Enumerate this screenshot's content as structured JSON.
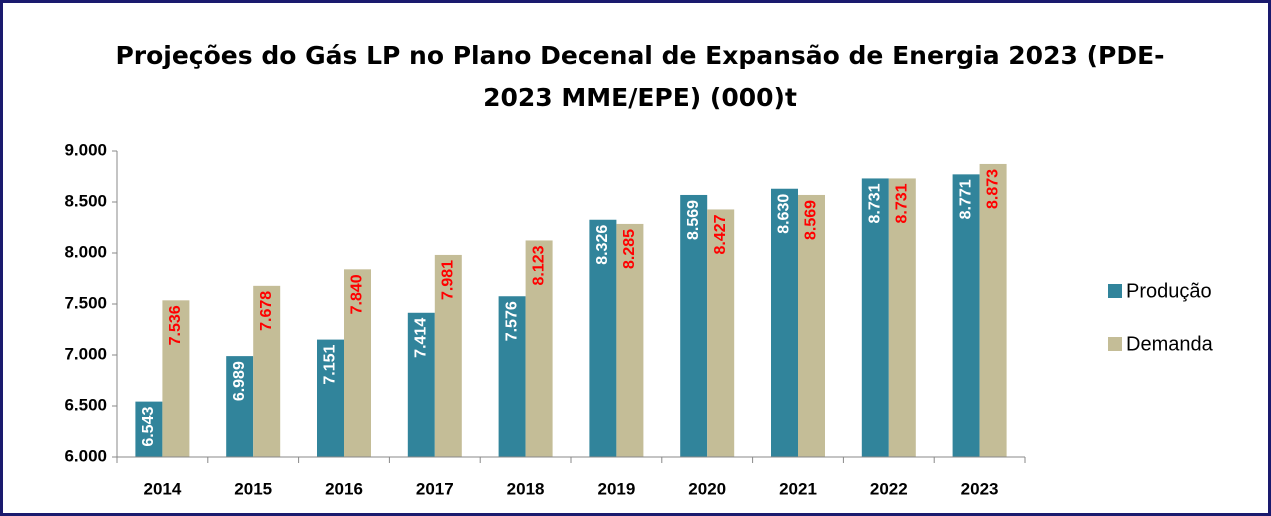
{
  "chart_data": {
    "type": "bar",
    "title": [
      "Projeções do Gás LP no Plano Decenal de Expansão de Energia 2023 (PDE-",
      "2023 MME/EPE) (000)t"
    ],
    "categories": [
      "2014",
      "2015",
      "2016",
      "2017",
      "2018",
      "2019",
      "2020",
      "2021",
      "2022",
      "2023"
    ],
    "series": [
      {
        "name": "Produção",
        "color": "#31849b",
        "label_color": "#ffffff",
        "values": [
          6543,
          6989,
          7151,
          7414,
          7576,
          8326,
          8569,
          8630,
          8731,
          8771
        ],
        "value_labels": [
          "6.543",
          "6.989",
          "7.151",
          "7.414",
          "7.576",
          "8.326",
          "8.569",
          "8.630",
          "8.731",
          "8.771"
        ]
      },
      {
        "name": "Demanda",
        "color": "#c4bd97",
        "label_color": "#ff0000",
        "values": [
          7536,
          7678,
          7840,
          7981,
          8123,
          8285,
          8427,
          8569,
          8731,
          8873
        ],
        "value_labels": [
          "7.536",
          "7.678",
          "7.840",
          "7.981",
          "8.123",
          "8.285",
          "8.427",
          "8.569",
          "8.731",
          "8.873"
        ]
      }
    ],
    "ylim": [
      6000,
      9000
    ],
    "yticks": [
      {
        "value": 6000,
        "label": "6.000"
      },
      {
        "value": 6500,
        "label": "6.500"
      },
      {
        "value": 7000,
        "label": "7.000"
      },
      {
        "value": 7500,
        "label": "7.500"
      },
      {
        "value": 8000,
        "label": "8.000"
      },
      {
        "value": 8500,
        "label": "8.500"
      },
      {
        "value": 9000,
        "label": "9.000"
      }
    ],
    "legend": "right"
  }
}
